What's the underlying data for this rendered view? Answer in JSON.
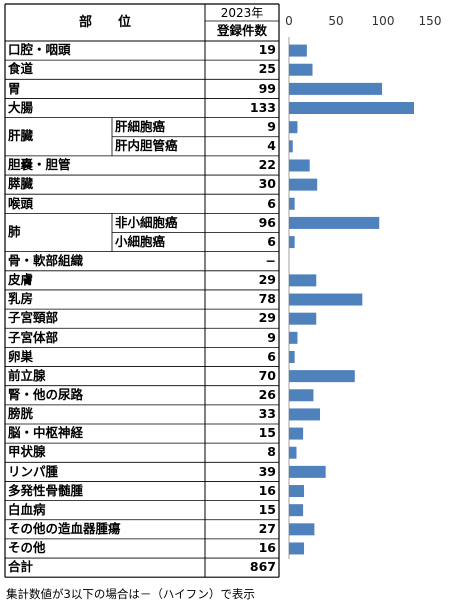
{
  "table": {
    "header_part": "部　　位",
    "header_year": "2023年",
    "header_count": "登録件数",
    "rows": [
      {
        "label": "口腔・咽頭",
        "value": "19"
      },
      {
        "label": "食道",
        "value": "25"
      },
      {
        "label": "胃",
        "value": "99"
      },
      {
        "label": "大腸",
        "value": "133"
      },
      {
        "label": "肝臓",
        "sub": "肝細胞癌",
        "value": "9"
      },
      {
        "label": "",
        "sub": "肝内胆管癌",
        "value": "4"
      },
      {
        "label": "胆嚢・胆管",
        "value": "22"
      },
      {
        "label": "膵臓",
        "value": "30"
      },
      {
        "label": "喉頭",
        "value": "6"
      },
      {
        "label": "肺",
        "sub": "非小細胞癌",
        "value": "96"
      },
      {
        "label": "",
        "sub": "小細胞癌",
        "value": "6"
      },
      {
        "label": "骨・軟部組織",
        "value": "−"
      },
      {
        "label": "皮膚",
        "value": "29"
      },
      {
        "label": "乳房",
        "value": "78"
      },
      {
        "label": "子宮頸部",
        "value": "29"
      },
      {
        "label": "子宮体部",
        "value": "9"
      },
      {
        "label": "卵巣",
        "value": "6"
      },
      {
        "label": "前立腺",
        "value": "70"
      },
      {
        "label": "腎・他の尿路",
        "value": "26"
      },
      {
        "label": "膀胱",
        "value": "33"
      },
      {
        "label": "脳・中枢神経",
        "value": "15"
      },
      {
        "label": "甲状腺",
        "value": "8"
      },
      {
        "label": "リンパ腫",
        "value": "39"
      },
      {
        "label": "多発性骨髄腫",
        "value": "16"
      },
      {
        "label": "白血病",
        "value": "15"
      },
      {
        "label": "その他の造血器腫瘍",
        "value": "27"
      },
      {
        "label": "その他",
        "value": "16"
      }
    ],
    "total_label": "合計",
    "total_value": "867"
  },
  "footnote": "集計数値が3以下の場合は－（ハイフン）で表示",
  "chart_data": {
    "type": "bar",
    "orientation": "horizontal",
    "categories": [
      "口腔・咽頭",
      "食道",
      "胃",
      "大腸",
      "肝細胞癌",
      "肝内胆管癌",
      "胆嚢・胆管",
      "膵臓",
      "喉頭",
      "非小細胞癌",
      "小細胞癌",
      "骨・軟部組織",
      "皮膚",
      "乳房",
      "子宮頸部",
      "子宮体部",
      "卵巣",
      "前立腺",
      "腎・他の尿路",
      "膀胱",
      "脳・中枢神経",
      "甲状腺",
      "リンパ腫",
      "多発性骨髄腫",
      "白血病",
      "その他の造血器腫瘍",
      "その他"
    ],
    "values": [
      19,
      25,
      99,
      133,
      9,
      4,
      22,
      30,
      6,
      96,
      6,
      null,
      29,
      78,
      29,
      9,
      6,
      70,
      26,
      33,
      15,
      8,
      39,
      16,
      15,
      27,
      16
    ],
    "xlim": [
      0,
      150
    ],
    "xticks": [
      0,
      50,
      100,
      150
    ],
    "grid": false,
    "bar_color": "#4f81bd",
    "title": "",
    "xlabel": "",
    "ylabel": ""
  }
}
